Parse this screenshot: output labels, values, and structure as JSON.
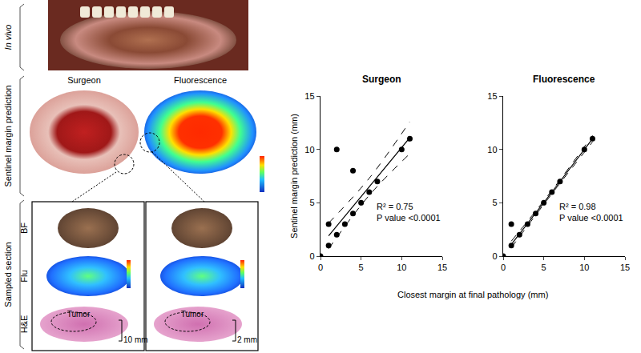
{
  "figure": {
    "row_labels": [
      "In vivo",
      "Sentinel margin prediction",
      "Sampled section"
    ],
    "specimen_titles": [
      "Surgeon",
      "Fluorescence"
    ],
    "section_labels": [
      "BF",
      "Flu",
      "H&E"
    ],
    "sections": [
      {
        "tumor_label": "Tumor",
        "scale_label": "10 mm"
      },
      {
        "tumor_label": "Tumor",
        "scale_label": "2 mm"
      }
    ]
  },
  "x_label": "Closest margin at final pathology (mm)",
  "chart_data": [
    {
      "type": "scatter",
      "title": "Surgeon",
      "y_label": "Sentinel margin prediction (mm)",
      "x": [
        0,
        1,
        1,
        2,
        2,
        3,
        4,
        4,
        5,
        6,
        7,
        10,
        11
      ],
      "y": [
        0,
        1,
        3,
        2,
        10,
        3,
        4,
        8,
        5,
        6,
        7,
        10,
        11
      ],
      "fit": {
        "x": [
          1,
          6,
          11
        ],
        "y": [
          1.9,
          6.5,
          11.1
        ],
        "ci_lower": [
          0.7,
          5.7,
          9.6
        ],
        "ci_upper": [
          3.1,
          7.3,
          12.6
        ]
      },
      "annotations": [
        "R² = 0.75",
        "P value <0.0001"
      ],
      "xlim": [
        0,
        15
      ],
      "ylim": [
        0,
        15
      ],
      "xticks": [
        0,
        5,
        10,
        15
      ],
      "yticks": [
        0,
        5,
        10,
        15
      ],
      "color": "#000000",
      "marker": "circle",
      "grid": false
    },
    {
      "type": "scatter",
      "title": "Fluorescence",
      "x": [
        0,
        1,
        1,
        2,
        3,
        4,
        5,
        6,
        7,
        10,
        11
      ],
      "y": [
        0,
        1,
        3,
        2,
        3,
        4,
        5,
        6,
        7,
        10,
        11
      ],
      "fit": {
        "x": [
          1,
          6,
          11
        ],
        "y": [
          1.1,
          6.0,
          11.0
        ],
        "ci_lower": [
          0.8,
          5.85,
          10.7
        ],
        "ci_upper": [
          1.4,
          6.15,
          11.3
        ]
      },
      "annotations": [
        "R² = 0.98",
        "P value <0.0001"
      ],
      "xlim": [
        0,
        15
      ],
      "ylim": [
        0,
        15
      ],
      "xticks": [
        0,
        5,
        10,
        15
      ],
      "yticks": [
        0,
        5,
        10,
        15
      ],
      "color": "#000000",
      "marker": "circle",
      "grid": false
    }
  ]
}
